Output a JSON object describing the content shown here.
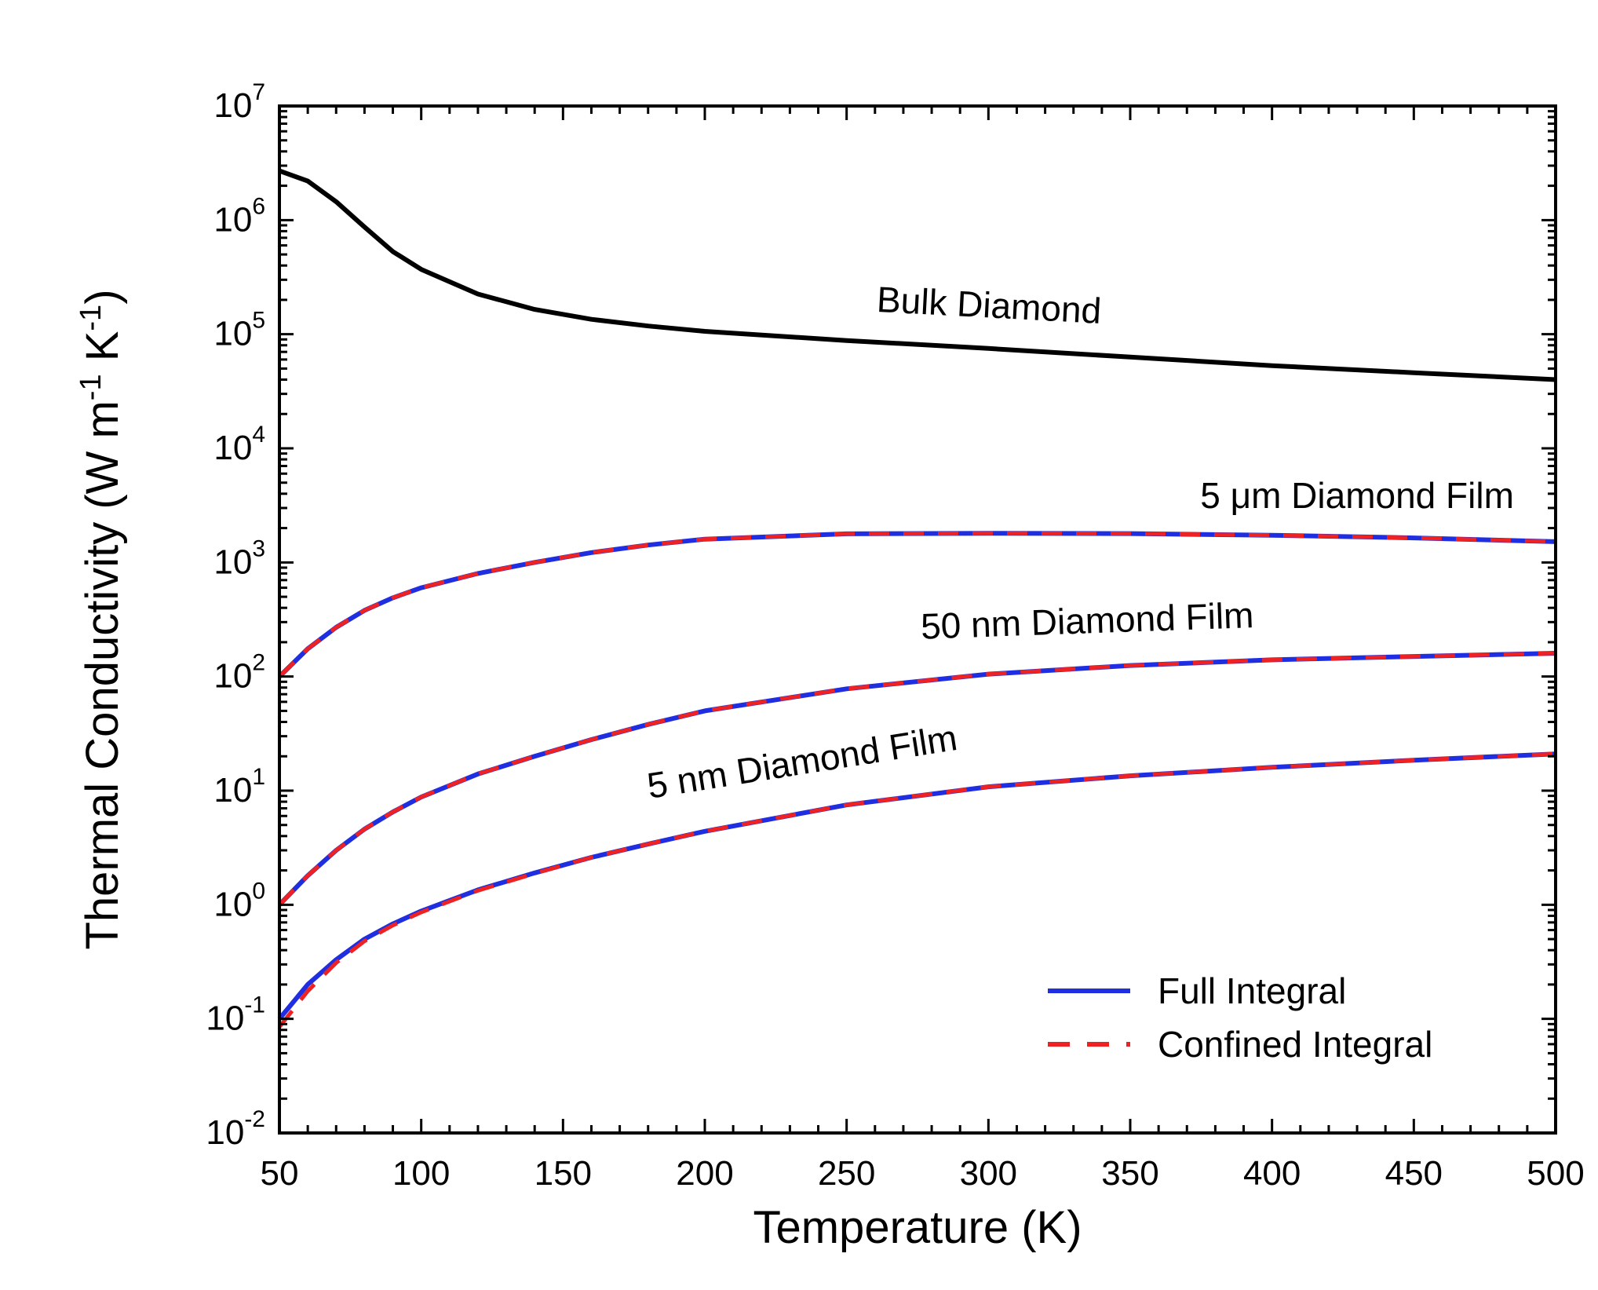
{
  "chart_data": {
    "type": "line",
    "title": "",
    "xlabel": "Temperature (K)",
    "ylabel": "Thermal Conductivity (W m⁻¹ K⁻¹)",
    "ylabel_parts": {
      "base": "Thermal Conductivity (W m",
      "sup1": "-1",
      "mid": " K",
      "sup2": "-1",
      "end": ")"
    },
    "xlim": [
      50,
      500
    ],
    "ylim_log10": [
      -2,
      7
    ],
    "yscale": "log",
    "x_ticks": [
      50,
      100,
      150,
      200,
      250,
      300,
      350,
      400,
      450,
      500
    ],
    "x_tick_labels": [
      "50",
      "100",
      "150",
      "200",
      "250",
      "300",
      "350",
      "400",
      "450",
      "500"
    ],
    "y_tick_exponents": [
      -2,
      -1,
      0,
      1,
      2,
      3,
      4,
      5,
      6,
      7
    ],
    "y_tick_base": "10",
    "y_tick_labels": [
      "-2",
      "-1",
      "0",
      "1",
      "2",
      "3",
      "4",
      "5",
      "6",
      "7"
    ],
    "grid": false,
    "legend_position": "bottom-right",
    "x": [
      50,
      60,
      70,
      80,
      90,
      100,
      120,
      140,
      160,
      180,
      200,
      250,
      300,
      350,
      400,
      450,
      500
    ],
    "series": [
      {
        "name": "Bulk Diamond",
        "label": "Bulk Diamond",
        "color": "#000000",
        "style": "solid",
        "values": [
          2700000,
          2200000,
          1450000,
          870000,
          530000,
          370000,
          225000,
          165000,
          135000,
          118000,
          106000,
          88000,
          75000,
          63000,
          53000,
          46000,
          40000
        ]
      },
      {
        "name": "5 μm Diamond Film (Full Integral)",
        "label": "5 μm Diamond Film",
        "color": "#1f2ee0",
        "style": "solid",
        "values": [
          100,
          175,
          270,
          380,
          490,
          600,
          800,
          1000,
          1220,
          1420,
          1600,
          1780,
          1800,
          1790,
          1730,
          1640,
          1520
        ]
      },
      {
        "name": "5 μm Diamond Film (Confined Integral)",
        "color": "#ee2222",
        "style": "dashed",
        "values": [
          100,
          175,
          270,
          380,
          490,
          600,
          800,
          1000,
          1220,
          1420,
          1600,
          1780,
          1800,
          1790,
          1730,
          1640,
          1520
        ]
      },
      {
        "name": "50 nm Diamond Film (Full Integral)",
        "label": "50 nm Diamond Film",
        "color": "#1f2ee0",
        "style": "solid",
        "values": [
          1.0,
          1.8,
          3.0,
          4.6,
          6.5,
          8.8,
          14,
          20,
          28,
          38,
          50,
          78,
          105,
          125,
          140,
          150,
          160
        ]
      },
      {
        "name": "50 nm Diamond Film (Confined Integral)",
        "color": "#ee2222",
        "style": "dashed",
        "values": [
          1.0,
          1.8,
          3.0,
          4.6,
          6.5,
          8.8,
          14,
          20,
          28,
          38,
          50,
          78,
          105,
          125,
          140,
          150,
          160
        ]
      },
      {
        "name": "5 nm Diamond Film (Full Integral)",
        "label": "5 nm Diamond Film",
        "color": "#1f2ee0",
        "style": "solid",
        "values": [
          0.1,
          0.2,
          0.33,
          0.5,
          0.68,
          0.88,
          1.35,
          1.9,
          2.6,
          3.4,
          4.4,
          7.5,
          10.8,
          13.5,
          16,
          18.5,
          21
        ]
      },
      {
        "name": "5 nm Diamond Film (Confined Integral)",
        "color": "#ee2222",
        "style": "dashed",
        "values": [
          0.085,
          0.175,
          0.31,
          0.48,
          0.66,
          0.86,
          1.33,
          1.88,
          2.6,
          3.4,
          4.4,
          7.5,
          10.8,
          13.5,
          16,
          18.5,
          21
        ]
      }
    ],
    "annotations": [
      {
        "text": "Bulk Diamond",
        "at_x": 300,
        "at_y": 140000,
        "rotation_deg": 3
      },
      {
        "text": "5 μm Diamond Film",
        "at_x": 430,
        "at_y": 3000,
        "rotation_deg": 0
      },
      {
        "text": "50 nm Diamond Film",
        "at_x": 335,
        "at_y": 240,
        "rotation_deg": -2
      },
      {
        "text": "5 nm Diamond Film",
        "at_x": 235,
        "at_y": 14,
        "rotation_deg": -9
      }
    ],
    "legend": [
      {
        "label": "Full Integral",
        "color": "#1f2ee0",
        "style": "solid"
      },
      {
        "label": "Confined Integral",
        "color": "#ee2222",
        "style": "dashed"
      }
    ]
  }
}
